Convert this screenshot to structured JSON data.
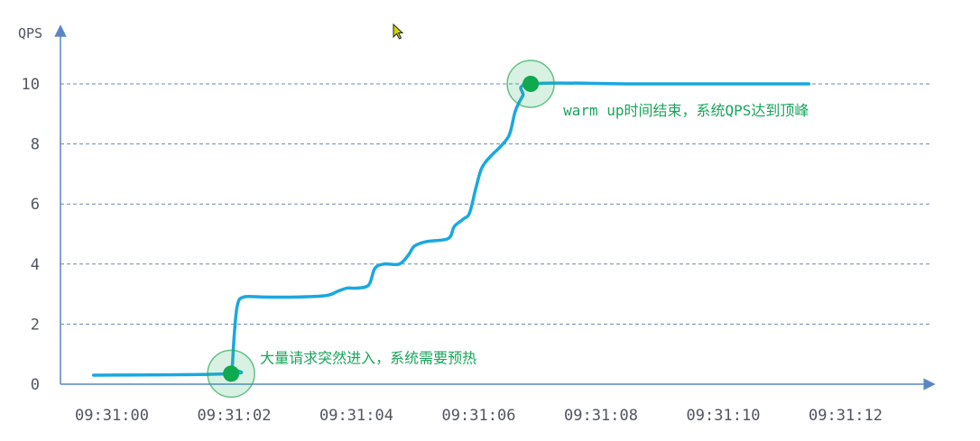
{
  "chart_data": {
    "type": "line",
    "ylabel": "QPS",
    "xlabel": "",
    "x_ticks": [
      "09:31:00",
      "09:31:02",
      "09:31:04",
      "09:31:06",
      "09:31:08",
      "09:31:10",
      "09:31:12"
    ],
    "y_ticks": [
      0,
      2,
      4,
      6,
      8,
      10
    ],
    "ylim": [
      0,
      11
    ],
    "grid": "horizontal-dashed",
    "series": [
      {
        "color": "#1aa8e0",
        "points": [
          [
            -0.3,
            0.3
          ],
          [
            1.95,
            0.35
          ],
          [
            1.97,
            0.6
          ],
          [
            2.0,
            1.6
          ],
          [
            2.05,
            2.6
          ],
          [
            2.15,
            2.9
          ],
          [
            2.5,
            2.9
          ],
          [
            3.0,
            2.9
          ],
          [
            3.5,
            2.95
          ],
          [
            3.7,
            3.1
          ],
          [
            3.85,
            3.2
          ],
          [
            4.0,
            3.2
          ],
          [
            4.2,
            3.3
          ],
          [
            4.3,
            3.85
          ],
          [
            4.45,
            4.0
          ],
          [
            4.7,
            4.0
          ],
          [
            4.85,
            4.3
          ],
          [
            4.95,
            4.6
          ],
          [
            5.15,
            4.75
          ],
          [
            5.5,
            4.85
          ],
          [
            5.6,
            5.25
          ],
          [
            5.75,
            5.5
          ],
          [
            5.85,
            5.7
          ],
          [
            5.95,
            6.5
          ],
          [
            6.05,
            7.2
          ],
          [
            6.2,
            7.6
          ],
          [
            6.35,
            7.9
          ],
          [
            6.5,
            8.3
          ],
          [
            6.6,
            9.1
          ],
          [
            6.72,
            9.6
          ],
          [
            6.85,
            10.0
          ],
          [
            8.5,
            10.0
          ],
          [
            10.0,
            10.0
          ],
          [
            11.4,
            10.0
          ]
        ]
      }
    ],
    "annotations": [
      {
        "x": 1.95,
        "y": 0.35,
        "text": "大量请求突然进入，系统需要预热",
        "color": "#1aa85a"
      },
      {
        "x": 6.85,
        "y": 10.0,
        "text": "warm up时间结束，系统QPS达到顶峰",
        "color": "#1aa85a"
      }
    ],
    "axis_color": "#5b86c5",
    "grid_color": "#6b8bb0"
  },
  "cursor": {
    "icon": "mouse-pointer-icon"
  }
}
